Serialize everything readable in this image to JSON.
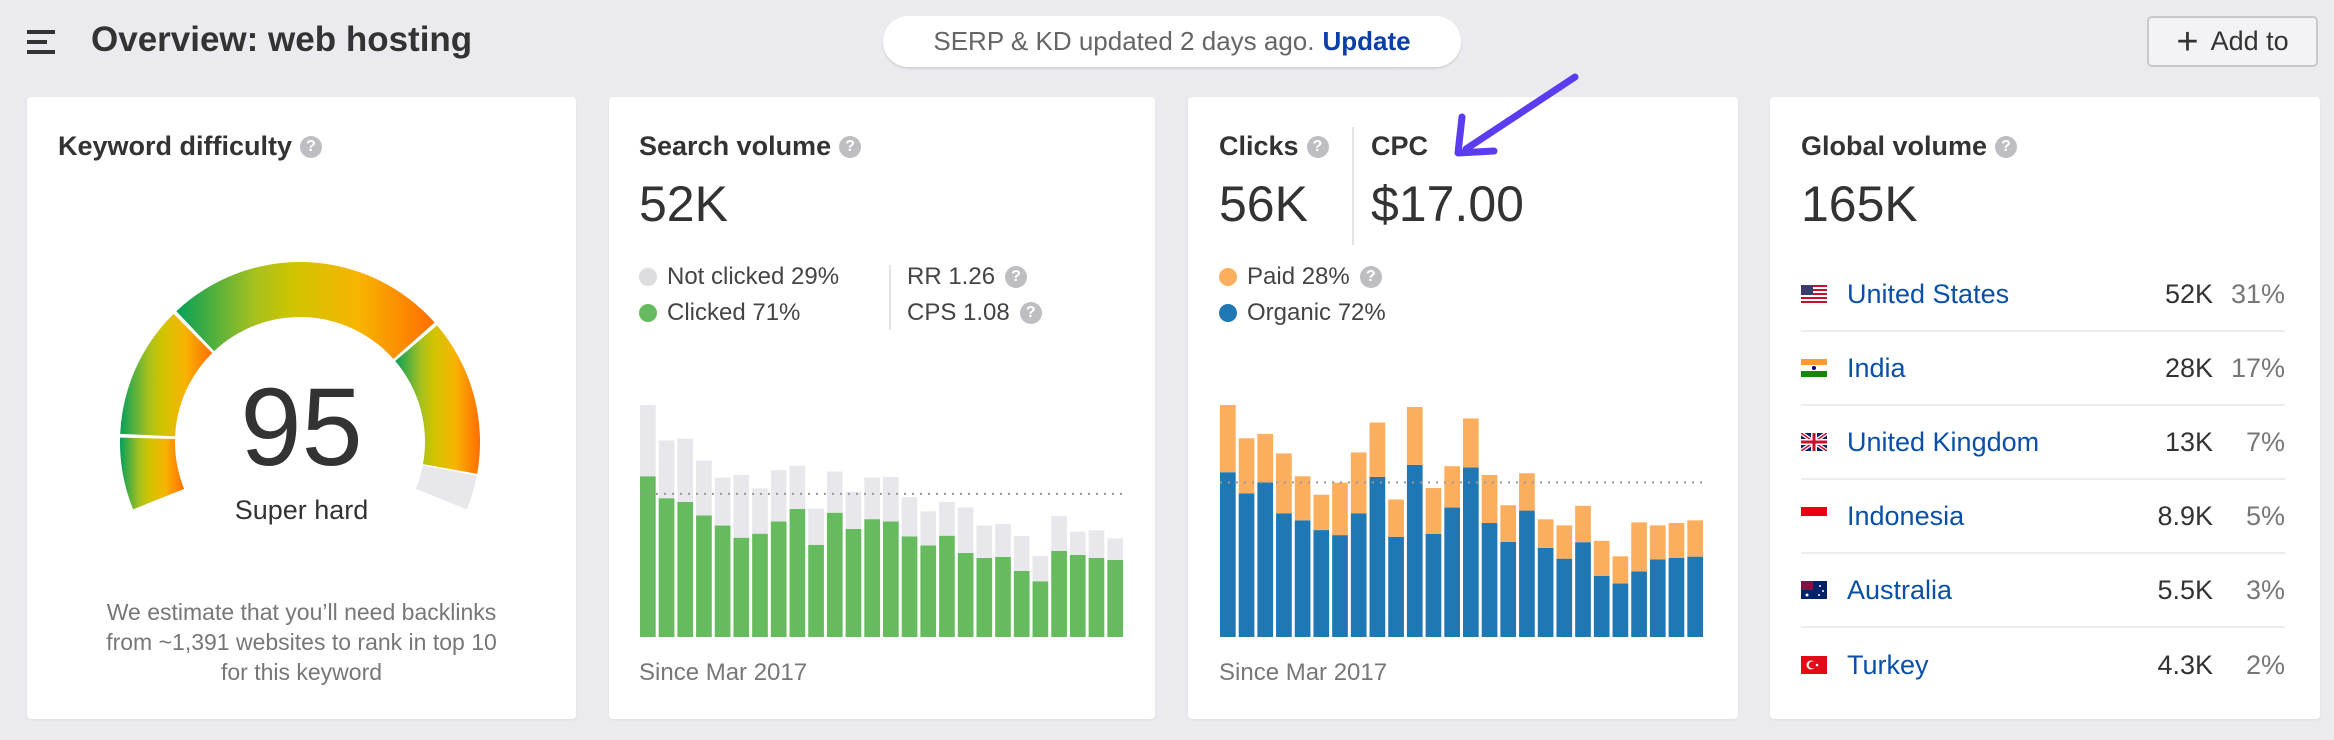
{
  "header": {
    "title": "Overview: web hosting",
    "update_notice": "SERP & KD updated 2 days ago.",
    "update_link": "Update",
    "add_to_label": "Add to"
  },
  "keyword_difficulty": {
    "title": "Keyword difficulty",
    "score": "95",
    "score_value": 95,
    "label": "Super hard",
    "description_lines": [
      "We estimate that you’ll need backlinks",
      "from ~1,391 websites to rank in top 10",
      "for this keyword"
    ]
  },
  "search_volume": {
    "title": "Search volume",
    "value": "52K",
    "legend": [
      {
        "label": "Not clicked 29%",
        "color": "#e0e0e3"
      },
      {
        "label": "Clicked 71%",
        "color": "#66bb5e"
      }
    ],
    "rr": "RR 1.26",
    "cps": "CPS 1.08",
    "since": "Since Mar 2017"
  },
  "clicks": {
    "title": "Clicks",
    "value": "56K",
    "cpc_title": "CPC",
    "cpc_value": "$17.00",
    "legend": [
      {
        "label": "Paid 28%",
        "color": "#fbae5e"
      },
      {
        "label": "Organic 72%",
        "color": "#1f77b4"
      }
    ],
    "since": "Since Mar 2017"
  },
  "global_volume": {
    "title": "Global volume",
    "value": "165K",
    "countries": [
      {
        "name": "United States",
        "volume": "52K",
        "share": "31%",
        "flag": "us"
      },
      {
        "name": "India",
        "volume": "28K",
        "share": "17%",
        "flag": "in"
      },
      {
        "name": "United Kingdom",
        "volume": "13K",
        "share": "7%",
        "flag": "gb"
      },
      {
        "name": "Indonesia",
        "volume": "8.9K",
        "share": "5%",
        "flag": "id"
      },
      {
        "name": "Australia",
        "volume": "5.5K",
        "share": "3%",
        "flag": "au"
      },
      {
        "name": "Turkey",
        "volume": "4.3K",
        "share": "2%",
        "flag": "tr"
      }
    ]
  },
  "annotation_arrow_color": "#5b3cf0",
  "chart_data": [
    {
      "type": "bar",
      "stacked": true,
      "categories_count": 26,
      "average_line": 424,
      "series": [
        {
          "name": "Clicked",
          "color": "#66bb5e",
          "values": [
            476,
            411,
            400,
            360,
            330,
            294,
            306,
            342,
            379,
            273,
            368,
            320,
            349,
            342,
            298,
            271,
            300,
            249,
            234,
            237,
            196,
            165,
            255,
            243,
            234,
            228
          ]
        },
        {
          "name": "Not clicked",
          "color": "#e8e8ec",
          "values": [
            211,
            171,
            187,
            162,
            142,
            186,
            134,
            152,
            128,
            107,
            122,
            110,
            123,
            132,
            116,
            101,
            100,
            135,
            96,
            98,
            103,
            75,
            103,
            69,
            82,
            64
          ]
        }
      ]
    },
    {
      "type": "bar",
      "stacked": true,
      "categories_count": 26,
      "average_line": 460,
      "series": [
        {
          "name": "Organic",
          "color": "#1f77b4",
          "values": [
            490,
            427,
            460,
            368,
            347,
            318,
            303,
            368,
            476,
            298,
            512,
            307,
            385,
            504,
            339,
            283,
            376,
            265,
            233,
            282,
            182,
            159,
            195,
            231,
            235,
            239
          ]
        },
        {
          "name": "Paid",
          "color": "#fbae5e",
          "values": [
            200,
            164,
            144,
            178,
            131,
            105,
            156,
            181,
            162,
            111,
            172,
            136,
            123,
            146,
            143,
            109,
            111,
            85,
            99,
            108,
            104,
            81,
            146,
            101,
            104,
            108
          ]
        }
      ]
    }
  ]
}
